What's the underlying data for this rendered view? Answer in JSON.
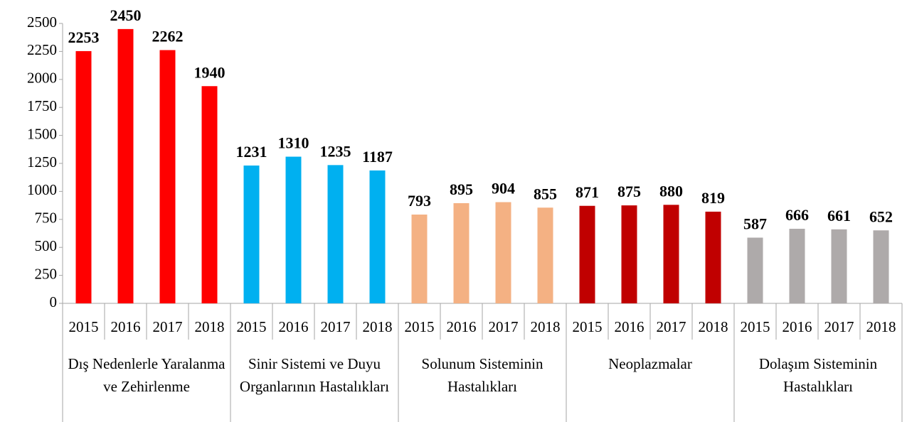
{
  "chart_data": {
    "type": "bar",
    "groups": [
      {
        "name": "Dış Nedenlerle Yaralanma ve Zehirlenme",
        "color": "#ff0000",
        "categories": [
          "2015",
          "2016",
          "2017",
          "2018"
        ],
        "values": [
          2253,
          2450,
          2262,
          1940
        ]
      },
      {
        "name": "Sinir Sistemi ve Duyu Organlarının Hastalıkları",
        "color": "#00b0f0",
        "categories": [
          "2015",
          "2016",
          "2017",
          "2018"
        ],
        "values": [
          1231,
          1310,
          1235,
          1187
        ]
      },
      {
        "name": "Solunum Sisteminin Hastalıkları",
        "color": "#f4b183",
        "categories": [
          "2015",
          "2016",
          "2017",
          "2018"
        ],
        "values": [
          793,
          895,
          904,
          855
        ]
      },
      {
        "name": "Neoplazmalar",
        "color": "#c00000",
        "categories": [
          "2015",
          "2016",
          "2017",
          "2018"
        ],
        "values": [
          871,
          875,
          880,
          819
        ]
      },
      {
        "name": "Dolaşım Sisteminin Hastalıkları",
        "color": "#aeaaaa",
        "categories": [
          "2015",
          "2016",
          "2017",
          "2018"
        ],
        "values": [
          587,
          666,
          661,
          652
        ]
      }
    ],
    "ylim": [
      0,
      2500
    ],
    "yticks": [
      0,
      250,
      500,
      750,
      1000,
      1250,
      1500,
      1750,
      2000,
      2250,
      2500
    ],
    "grid": false
  }
}
